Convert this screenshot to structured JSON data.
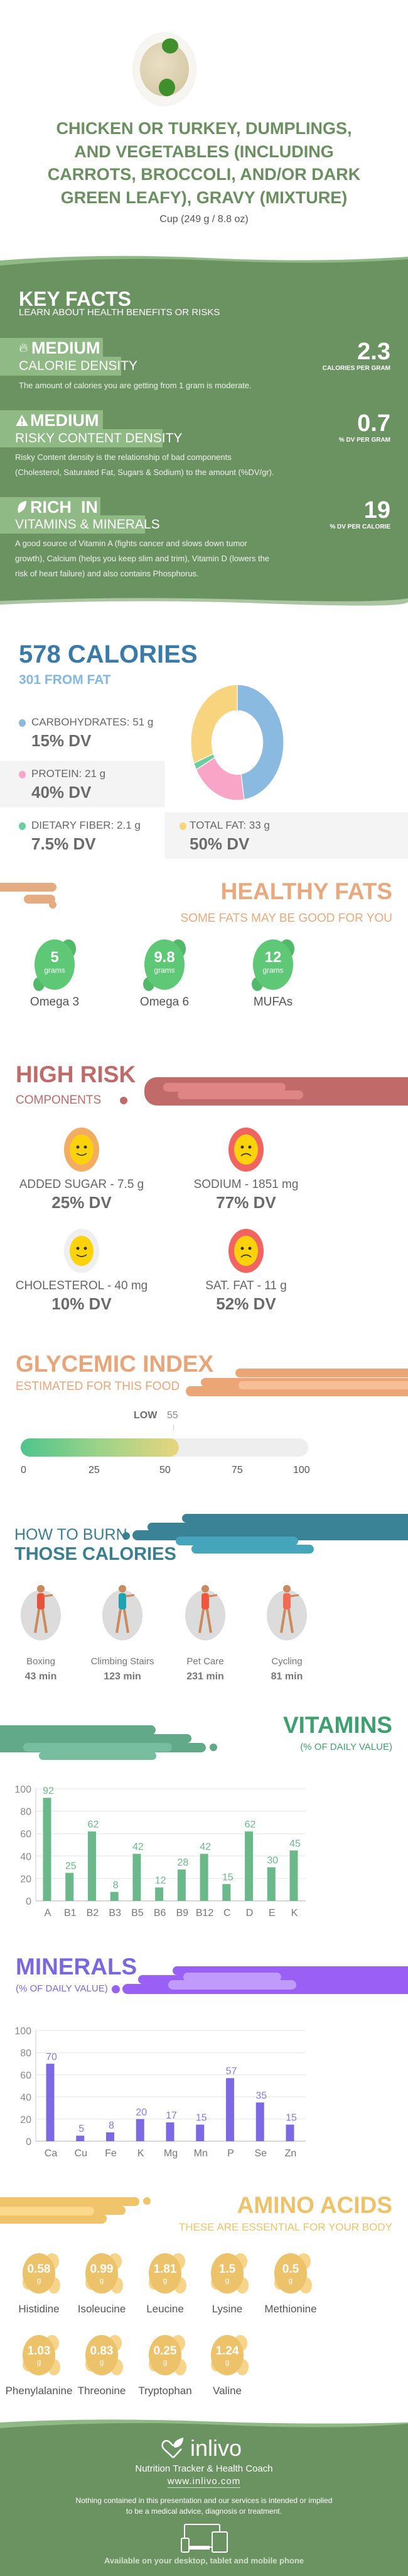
{
  "header": {
    "title_lines": [
      "CHICKEN OR TURKEY, DUMPLINGS,",
      "AND VEGETABLES (INCLUDING",
      "CARROTS, BROCCOLI, AND/OR DARK",
      "GREEN LEAFY), GRAVY (MIXTURE)"
    ],
    "serving": "Cup (249 g / 8.8 oz)",
    "food_image": "dumplings-plate"
  },
  "key_facts": {
    "title": "KEY FACTS",
    "subtitle": "LEARN ABOUT HEALTH BENEFITS OR RISKS",
    "items": [
      {
        "icon": "flame-icon",
        "level": "MEDIUM",
        "label": "CALORIE DENSITY",
        "value": "2.3",
        "unit": "CALORIES PER GRAM",
        "desc": [
          "The amount of calories you are getting from 1 gram is moderate."
        ]
      },
      {
        "icon": "warning-icon",
        "level": "MEDIUM",
        "label": "RISKY CONTENT DENSITY",
        "value": "0.7",
        "unit": "% DV PER GRAM",
        "desc": [
          "Risky Content density is the relationship of bad components",
          "(Cholesterol, Saturated Fat, Sugars & Sodium) to the amount (%DV/gr)."
        ]
      },
      {
        "icon": "leaf-icon",
        "level": "RICH  IN",
        "label": "VITAMINS & MINERALS",
        "value": "19",
        "unit": "% DV PER CALORIE",
        "desc": [
          "A good source of Vitamin A (fights cancer and slows down tumor",
          "growth), Calcium (helps you keep slim and trim), Vitamin D (lowers the",
          "risk of heart failure) and also contains Phosphorus."
        ]
      }
    ]
  },
  "calories": {
    "title": "578 CALORIES",
    "subtitle": "301 FROM FAT",
    "macros": [
      {
        "label": "CARBOHYDRATES: 51 g",
        "dv": "15% DV",
        "grams": 51,
        "color": "#8bbae0"
      },
      {
        "label": "PROTEIN: 21 g",
        "dv": "40% DV",
        "grams": 21,
        "color": "#f8a5c8"
      },
      {
        "label": "DIETARY FIBER: 2.1 g",
        "dv": "7.5% DV",
        "grams": 2.1,
        "color": "#6cce9c"
      },
      {
        "label": "TOTAL FAT: 33 g",
        "dv": "50% DV",
        "grams": 33,
        "color": "#f9d47e"
      }
    ]
  },
  "chart_data": [
    {
      "type": "pie",
      "categories": [
        "CARBOHYDRATES",
        "PROTEIN",
        "DIETARY FIBER",
        "TOTAL FAT"
      ],
      "values": [
        51,
        21,
        2.1,
        33
      ],
      "colors": [
        "#8bbae0",
        "#f8a5c8",
        "#6cce9c",
        "#f9d47e"
      ],
      "donut": true
    },
    {
      "type": "bar",
      "title": "VITAMINS",
      "subtitle": "(% OF DAILY VALUE)",
      "categories": [
        "A",
        "B1",
        "B2",
        "B3",
        "B5",
        "B6",
        "B9",
        "B12",
        "C",
        "D",
        "E",
        "K"
      ],
      "values": [
        92,
        25,
        62,
        8,
        42,
        12,
        28,
        42,
        15,
        62,
        30,
        45
      ],
      "yticks": [
        0,
        20,
        40,
        60,
        80,
        100
      ],
      "ylim": [
        0,
        100
      ],
      "grid": true,
      "color": "#6bb98a"
    },
    {
      "type": "bar",
      "title": "MINERALS",
      "subtitle": "(% OF DAILY VALUE)",
      "categories": [
        "Ca",
        "Cu",
        "Fe",
        "K",
        "Mg",
        "Mn",
        "P",
        "Se",
        "Zn"
      ],
      "values": [
        70,
        5,
        8,
        20,
        17,
        15,
        57,
        35,
        15
      ],
      "yticks": [
        0,
        20,
        40,
        60,
        80,
        100
      ],
      "ylim": [
        0,
        100
      ],
      "grid": true,
      "color": "#7d69e3"
    }
  ],
  "healthy_fats": {
    "title": "HEALTHY FATS",
    "subtitle": "SOME FATS MAY BE GOOD FOR YOU",
    "unit": "grams",
    "items": [
      {
        "value": "5",
        "name": "Omega 3"
      },
      {
        "value": "9.8",
        "name": "Omega 6"
      },
      {
        "value": "12",
        "name": "MUFAs"
      }
    ]
  },
  "high_risk": {
    "title": "HIGH RISK",
    "subtitle": "COMPONENTS",
    "items": [
      {
        "label": "ADDED SUGAR - 7.5 g",
        "dv": "25% DV",
        "mood": "happy",
        "ring": "#f2ad62"
      },
      {
        "label": "SODIUM - 1851 mg",
        "dv": "77% DV",
        "mood": "sad",
        "ring": "#f0655f"
      },
      {
        "label": "CHOLESTEROL - 40 mg",
        "dv": "10% DV",
        "mood": "happy",
        "ring": "#efefef"
      },
      {
        "label": "SAT. FAT - 11 g",
        "dv": "52% DV",
        "mood": "sad",
        "ring": "#f0655f"
      }
    ]
  },
  "glycemic": {
    "title": "GLYCEMIC INDEX",
    "subtitle": "ESTIMATED FOR THIS FOOD",
    "level": "LOW",
    "value": "55",
    "value_num": 55,
    "ticks": [
      "0",
      "25",
      "50",
      "75",
      "100"
    ]
  },
  "burn": {
    "title_top": "HOW TO BURN",
    "title_bottom": "THOSE CALORIES",
    "activities": [
      {
        "icon": "boxing-icon",
        "name": "Boxing",
        "time": "43 min"
      },
      {
        "icon": "climbing-stairs-icon",
        "name": "Climbing Stairs",
        "time": "123 min"
      },
      {
        "icon": "dog-walking-icon",
        "name": "Pet Care",
        "time": "231 min"
      },
      {
        "icon": "cycling-icon",
        "name": "Cycling",
        "time": "81 min"
      }
    ]
  },
  "amino": {
    "title": "AMINO ACIDS",
    "subtitle": "THESE ARE ESSENTIAL FOR YOUR BODY",
    "unit": "g",
    "items": [
      {
        "value": "0.58",
        "name": "Histidine"
      },
      {
        "value": "0.99",
        "name": "Isoleucine"
      },
      {
        "value": "1.81",
        "name": "Leucine"
      },
      {
        "value": "1.5",
        "name": "Lysine"
      },
      {
        "value": "0.5",
        "name": "Methionine"
      },
      {
        "value": "1.03",
        "name": "Phenylalanine"
      },
      {
        "value": "0.83",
        "name": "Threonine"
      },
      {
        "value": "0.25",
        "name": "Tryptophan"
      },
      {
        "value": "1.24",
        "name": "Valine"
      }
    ]
  },
  "footer": {
    "logo": "inlivo",
    "tagline": "Nutrition Tracker & Health Coach",
    "url": "www.inlivo.com",
    "disclaimer": [
      "Nothing contained in this presentation and our services is intended or implied",
      "to be a medical advice, diagnosis or treatment."
    ],
    "available": "Available on your desktop, tablet and mobile phone"
  },
  "colors": {
    "green": "#6b9362",
    "blue": "#3a7aa8",
    "peach": "#e8a97e",
    "red": "#c06a6a",
    "teal": "#3a7f8f",
    "vitamin": "#3fa06f",
    "mineral": "#7b68e0",
    "amino": "#ecc36a"
  }
}
